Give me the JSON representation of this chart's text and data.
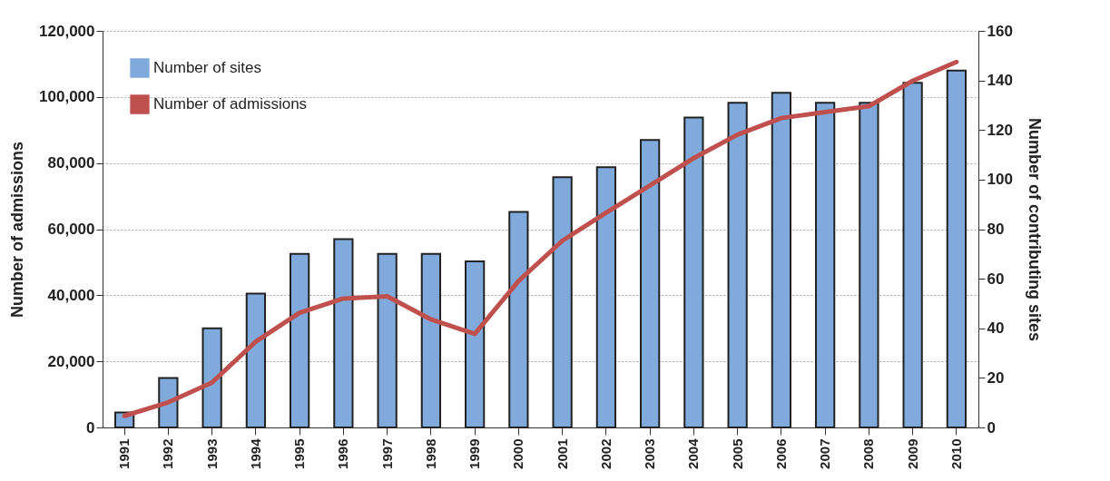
{
  "chart_data": {
    "type": "bar",
    "xlabel": null,
    "ylabel": "Number of admissions",
    "y2label": "Number of contributing sites",
    "categories": [
      "1991",
      "1992",
      "1993",
      "1994",
      "1995",
      "1996",
      "1997",
      "1998",
      "1999",
      "2000",
      "2001",
      "2002",
      "2003",
      "2004",
      "2005",
      "2006",
      "2007",
      "2008",
      "2009",
      "2010"
    ],
    "series": [
      {
        "name": "Number of sites",
        "axis": "y2",
        "color": "#7faadb",
        "values": [
          6,
          20,
          40,
          54,
          70,
          76,
          70,
          70,
          67,
          87,
          101,
          105,
          116,
          125,
          131,
          135,
          131,
          131,
          139,
          144
        ]
      },
      {
        "name": "Number of admissions",
        "type": "line",
        "color": "#c0504d",
        "values": [
          3500,
          7600,
          13600,
          26000,
          34700,
          39000,
          39700,
          32700,
          28300,
          44300,
          56500,
          65000,
          73200,
          81500,
          88600,
          93600,
          95400,
          97200,
          104900,
          110600
        ]
      }
    ],
    "ylim": [
      0,
      120000
    ],
    "yticks": [
      0,
      {
        "value": 20000,
        "label": "20,000"
      },
      {
        "value": 40000,
        "label": "40,000"
      },
      {
        "value": 60000,
        "label": "60,000"
      },
      {
        "value": 80000,
        "label": "80,000"
      },
      {
        "value": 100000,
        "label": "100,000"
      },
      {
        "value": 120000,
        "label": "120,000"
      }
    ],
    "y2lim": [
      0,
      160
    ],
    "y2ticks": [
      0,
      20,
      40,
      60,
      80,
      100,
      120,
      140,
      160
    ],
    "grid": "y",
    "legend": "top left"
  }
}
